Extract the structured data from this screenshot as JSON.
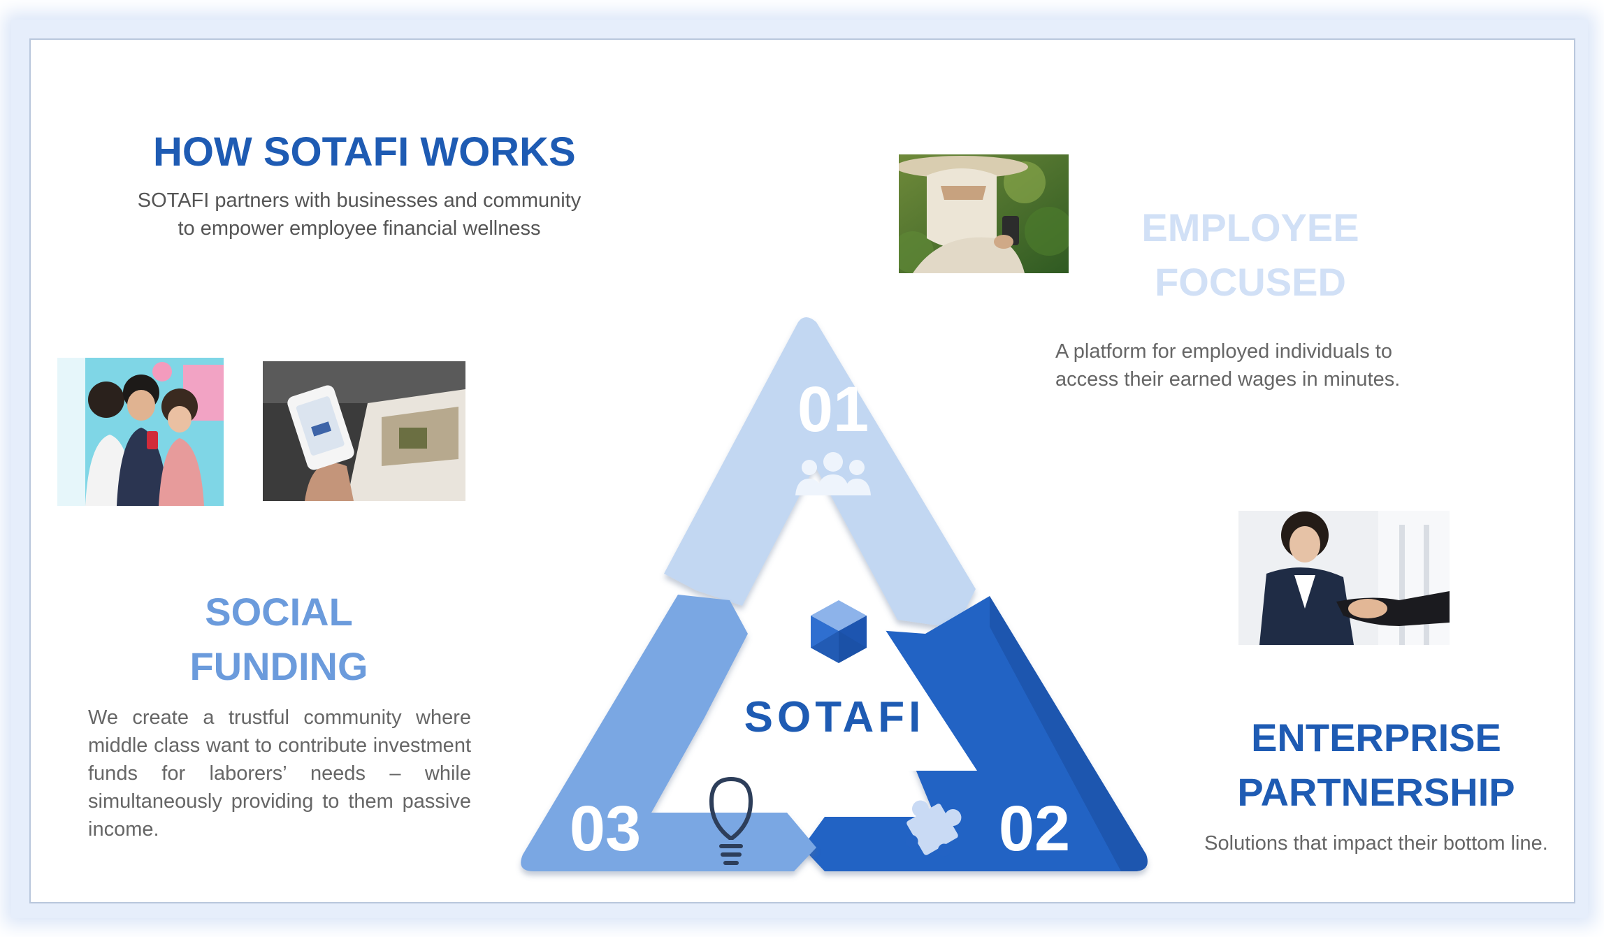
{
  "header": {
    "title": "HOW SOTAFI WORKS",
    "subtitle_line1": "SOTAFI partners with businesses and community",
    "subtitle_line2": "to empower employee financial wellness"
  },
  "employee": {
    "title_line1": "EMPLOYEE",
    "title_line2": "FOCUSED",
    "desc_line1": "A platform for employed individuals to",
    "desc_line2": "access their earned wages in minutes."
  },
  "social": {
    "title_line1": "SOCIAL",
    "title_line2": "FUNDING",
    "desc": "We create a trustful community where middle class want to contribute investment funds for laborers’ needs – while simultaneously providing to them passive income."
  },
  "enterprise": {
    "title_line1": "ENTERPRISE",
    "title_line2": "PARTNERSHIP",
    "desc": "Solutions that impact their bottom line."
  },
  "diagram": {
    "center_logo": "SOTAFI",
    "step1": "01",
    "step2": "02",
    "step3": "03",
    "step1_icon": "people-icon",
    "step2_icon": "puzzle-icon",
    "step3_icon": "lightbulb-icon",
    "colors": {
      "light": "#c2d7f2",
      "medium": "#7aa7e3",
      "dark": "#2363c4",
      "brand": "#1e5bb3"
    }
  }
}
